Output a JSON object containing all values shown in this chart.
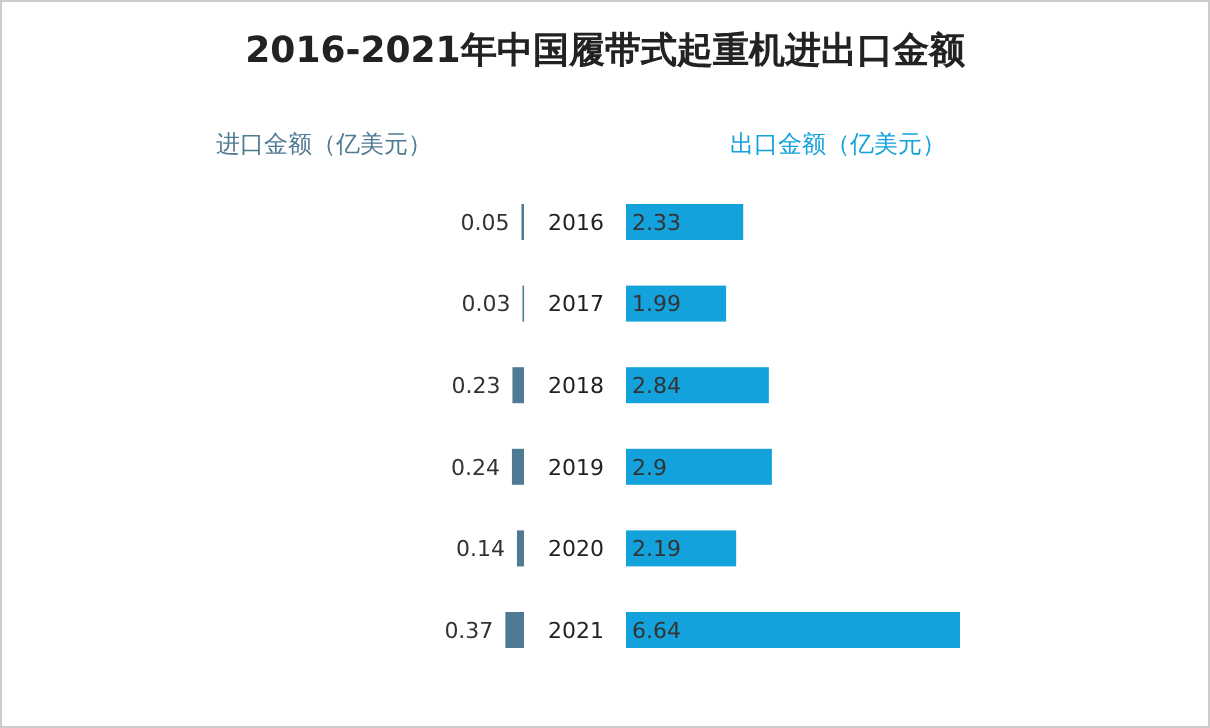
{
  "chart_data": [
    {
      "type": "bar",
      "orientation": "horizontal",
      "title": "2016-2021年中国履带式起重机进出口金额",
      "subtitle": "进口金额（亿美元）",
      "categories": [
        "2016",
        "2017",
        "2018",
        "2019",
        "2020",
        "2021"
      ],
      "data_labels": true,
      "color": "#4f7a93",
      "values": [
        0.05,
        0.03,
        0.23,
        0.24,
        0.14,
        0.37
      ]
    },
    {
      "type": "bar",
      "orientation": "horizontal",
      "subtitle": "出口金额（亿美元）",
      "categories": [
        null,
        null,
        null,
        null,
        null,
        null
      ],
      "data_labels": true,
      "color": "#14a2dc",
      "values": [
        2.33,
        1.99,
        2.84,
        2.9,
        2.19,
        6.64
      ]
    }
  ]
}
